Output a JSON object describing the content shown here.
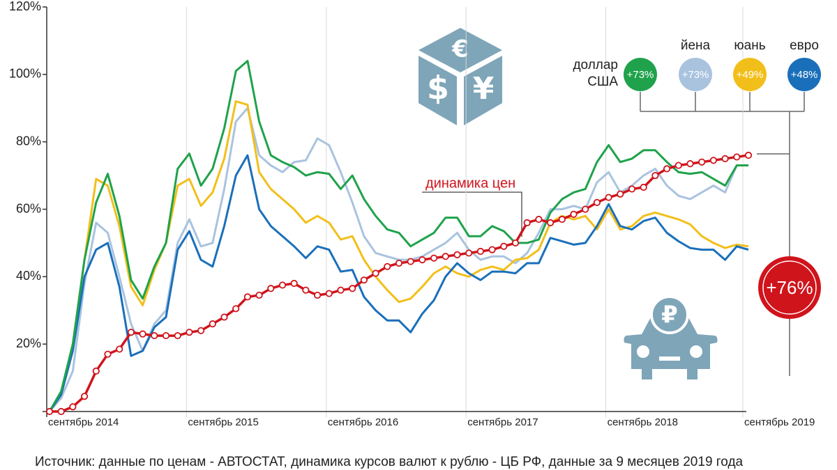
{
  "chart_data": {
    "type": "line",
    "categories": [
      "сентябрь 2014",
      null,
      null,
      null,
      null,
      null,
      null,
      null,
      null,
      null,
      null,
      null,
      "сентябрь 2015",
      null,
      null,
      null,
      null,
      null,
      null,
      null,
      null,
      null,
      null,
      null,
      "сентябрь 2016",
      null,
      null,
      null,
      null,
      null,
      null,
      null,
      null,
      null,
      null,
      null,
      "сентябрь 2017",
      null,
      null,
      null,
      null,
      null,
      null,
      null,
      null,
      null,
      null,
      null,
      "сентябрь 2018",
      null,
      null,
      null,
      null,
      null,
      null,
      null,
      null,
      null,
      null,
      null,
      "сентябрь 2019"
    ],
    "ylim": [
      0,
      120
    ],
    "yticks": [
      {
        "value": 20,
        "label": "20%"
      },
      {
        "value": 40,
        "label": "40%"
      },
      {
        "value": 60,
        "label": "60%"
      },
      {
        "value": 80,
        "label": "80%"
      },
      {
        "value": 100,
        "label": "100%"
      },
      {
        "value": 120,
        "label": "120%"
      }
    ],
    "grid": "x",
    "series": [
      {
        "name": "йена",
        "color": "#a9c3df",
        "badge": "+73%",
        "values": [
          0,
          4,
          12,
          38,
          56,
          53,
          40,
          26,
          18,
          26,
          30,
          50,
          57,
          49,
          50,
          66,
          86,
          90,
          76,
          73,
          71,
          74,
          74.5,
          81,
          79,
          71,
          62,
          52,
          47,
          46,
          45,
          45,
          46,
          48,
          50,
          53,
          48,
          45,
          46,
          46,
          44,
          47,
          53,
          60,
          60,
          61,
          60,
          68,
          71,
          65,
          67,
          70,
          72,
          67,
          64,
          63,
          65,
          67,
          65,
          73,
          73
        ]
      },
      {
        "name": "юань",
        "color": "#f2bf1a",
        "badge": "+49%",
        "values": [
          0,
          5,
          20,
          45,
          69,
          67,
          55,
          37,
          31.5,
          42,
          50,
          67,
          69,
          61,
          65,
          75,
          92,
          91,
          71,
          66,
          63,
          60,
          56,
          58,
          56,
          51,
          52,
          45,
          40,
          36,
          32.5,
          33.5,
          37,
          41,
          43,
          41,
          40,
          42,
          43,
          42,
          45,
          45.5,
          48,
          56,
          58,
          57,
          58,
          54,
          60,
          54,
          55,
          58,
          59,
          58,
          57,
          55.5,
          52,
          50,
          48.5,
          49.5,
          49
        ]
      },
      {
        "name": "евро",
        "color": "#1a6fba",
        "badge": "+48%",
        "values": [
          0,
          5,
          18,
          40,
          48,
          50,
          37,
          16.5,
          18,
          25,
          28,
          48,
          53.5,
          45,
          43,
          55,
          70,
          76,
          60,
          55,
          52,
          49,
          45.5,
          49,
          48,
          41.5,
          42,
          34,
          30,
          27,
          27,
          23.5,
          29,
          33,
          40,
          44,
          41,
          39,
          41.5,
          41.5,
          41,
          44,
          44,
          51.5,
          50.5,
          49.5,
          50,
          55,
          61.5,
          55,
          54,
          56.5,
          57.5,
          53,
          50.5,
          48.5,
          48,
          48,
          45,
          49,
          48
        ]
      },
      {
        "name": "доллар США",
        "color": "#1fa24b",
        "badge": "+73%",
        "values": [
          0,
          6,
          20,
          45,
          62,
          70.5,
          58,
          39,
          33.5,
          43,
          50,
          72,
          76.5,
          67,
          72,
          84,
          101,
          104,
          86,
          76,
          74,
          72.5,
          70,
          71,
          70.5,
          66,
          70,
          63,
          58,
          54,
          53,
          49,
          51,
          53,
          57.5,
          57.5,
          52,
          52,
          55,
          53.5,
          50,
          50,
          51,
          59,
          63,
          65,
          66,
          74,
          79,
          74,
          75,
          77.5,
          77.5,
          74,
          71,
          70.5,
          71,
          69,
          67,
          73,
          73
        ]
      },
      {
        "name": "динамика цен",
        "color": "#d0141c",
        "badge": "+76%",
        "markers": true,
        "values": [
          0,
          0,
          1.4,
          4.5,
          12,
          17,
          18.5,
          23.5,
          23,
          22.5,
          22.5,
          22.5,
          23.5,
          24,
          26,
          28,
          30.5,
          34,
          34.5,
          36.5,
          37.5,
          38,
          36,
          34.5,
          35,
          36,
          36.5,
          39,
          41,
          43,
          44,
          44.5,
          45,
          45.5,
          46,
          46.5,
          47,
          47.5,
          48,
          49,
          50,
          56,
          57,
          56,
          57,
          58.5,
          60,
          62,
          63.5,
          64.5,
          66,
          66.5,
          70,
          72,
          73,
          73.5,
          74,
          74.5,
          75,
          75.5,
          76
        ]
      }
    ],
    "icon_symbols": [
      "€",
      "$",
      "¥",
      "₽"
    ],
    "source": "Источник: данные по ценам - АВТОСТАТ, динамика курсов валют к рублю - ЦБ РФ, данные за 9 месяцев 2019 года"
  }
}
